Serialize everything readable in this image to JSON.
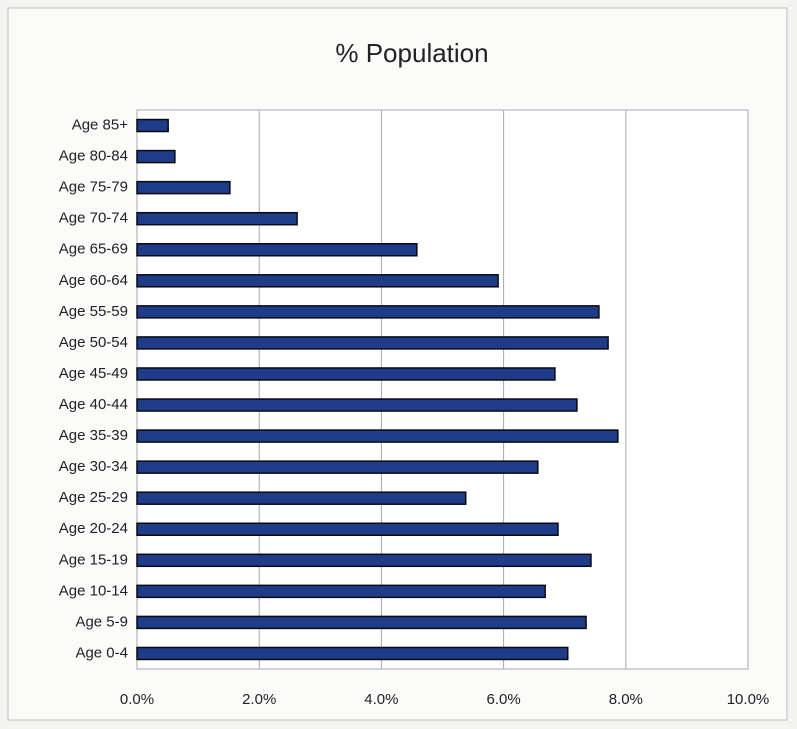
{
  "chart_data": {
    "type": "bar",
    "orientation": "horizontal",
    "title": "% Population",
    "categories": [
      "Age 0-4",
      "Age 5-9",
      "Age 10-14",
      "Age 15-19",
      "Age 20-24",
      "Age 25-29",
      "Age 30-34",
      "Age 35-39",
      "Age 40-44",
      "Age 45-49",
      "Age 50-54",
      "Age 55-59",
      "Age 60-64",
      "Age 65-69",
      "Age 70-74",
      "Age 75-79",
      "Age 80-84",
      "Age 85+"
    ],
    "values": [
      7.05,
      7.35,
      6.68,
      7.43,
      6.89,
      5.38,
      6.56,
      7.87,
      7.2,
      6.84,
      7.71,
      7.56,
      5.91,
      4.58,
      2.62,
      1.52,
      0.62,
      0.51
    ],
    "color": "#1f3c88",
    "xlim": [
      0,
      10
    ],
    "xticks": [
      {
        "value": 0,
        "label": "0.0%"
      },
      {
        "value": 2,
        "label": "2.0%"
      },
      {
        "value": 4,
        "label": "4.0%"
      },
      {
        "value": 6,
        "label": "6.0%"
      },
      {
        "value": 8,
        "label": "8.0%"
      },
      {
        "value": 10,
        "label": "10.0%"
      }
    ],
    "grid": true
  }
}
